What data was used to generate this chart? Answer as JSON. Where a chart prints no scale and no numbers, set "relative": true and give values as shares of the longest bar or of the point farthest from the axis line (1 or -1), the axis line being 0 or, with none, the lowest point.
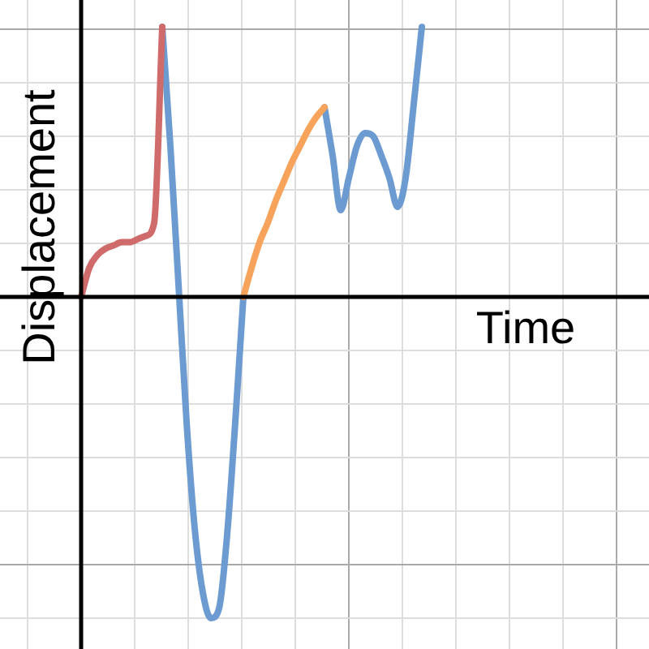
{
  "chart_data": {
    "type": "line",
    "xlabel": "Time",
    "ylabel": "Displacement",
    "relative": true,
    "grid": true,
    "legend": false,
    "marker": "none",
    "line_style": "solid",
    "categories": [
      null,
      null,
      null,
      null,
      null,
      null,
      null,
      null,
      null,
      null,
      null,
      null,
      null,
      null,
      null,
      null,
      null,
      null,
      null,
      null,
      null,
      null,
      null,
      null,
      null,
      null,
      null,
      null,
      null,
      null,
      null,
      null,
      null,
      null,
      null,
      null,
      null,
      null,
      null,
      null,
      null,
      null,
      null,
      null,
      null,
      null,
      null,
      null,
      null,
      null,
      null,
      null,
      null,
      null,
      null,
      null,
      null,
      null,
      null,
      null,
      null,
      null,
      null,
      null,
      null,
      null,
      null,
      null,
      null,
      null,
      null,
      null,
      null,
      null,
      null,
      null,
      null,
      null,
      null,
      null,
      null
    ],
    "series": [
      {
        "color": "#d06b6b",
        "values": [
          null,
          null,
          null,
          null,
          null,
          null,
          null,
          null,
          null,
          null,
          0,
          0.09,
          0.13,
          0.15,
          0.16,
          0.17,
          0.17,
          0.18,
          0.19,
          0.23,
          0.84,
          null,
          null,
          null,
          null,
          null,
          null,
          null,
          null,
          null,
          null,
          null,
          null,
          null,
          null,
          null,
          null,
          null,
          null,
          null,
          null,
          null,
          null,
          null,
          null,
          null,
          null,
          null,
          null,
          null,
          null,
          null,
          null,
          null,
          null,
          null,
          null,
          null,
          null,
          null,
          null,
          null,
          null,
          null,
          null,
          null,
          null,
          null,
          null,
          null,
          null,
          null,
          null,
          null,
          null,
          null,
          null,
          null,
          null,
          null,
          null
        ]
      },
      {
        "color": "#f7a35c",
        "values": [
          null,
          null,
          null,
          null,
          null,
          null,
          null,
          null,
          null,
          null,
          null,
          null,
          null,
          null,
          null,
          null,
          null,
          null,
          null,
          null,
          null,
          null,
          null,
          null,
          null,
          null,
          null,
          null,
          null,
          null,
          0,
          0.09,
          0.17,
          0.23,
          0.3,
          0.36,
          0.42,
          0.47,
          0.52,
          0.56,
          0.59,
          null,
          null,
          null,
          null,
          null,
          null,
          null,
          null,
          null,
          null,
          null,
          null,
          null,
          null,
          null,
          null,
          null,
          null,
          null,
          null,
          null,
          null,
          null,
          null,
          null,
          null,
          null,
          null,
          null,
          null,
          null,
          null,
          null,
          null,
          null,
          null,
          null,
          null,
          null,
          null
        ]
      },
      {
        "color": "#6b9bd1",
        "values": [
          null,
          null,
          null,
          null,
          null,
          null,
          null,
          null,
          null,
          null,
          null,
          null,
          null,
          null,
          null,
          null,
          null,
          null,
          null,
          null,
          0.84,
          0.47,
          0.04,
          -0.39,
          -0.72,
          -0.92,
          -1,
          -0.97,
          -0.74,
          -0.39,
          0,
          null,
          null,
          null,
          null,
          null,
          null,
          null,
          null,
          null,
          0.59,
          0.44,
          0.27,
          0.37,
          0.47,
          0.51,
          0.5,
          0.44,
          0.37,
          0.28,
          0.37,
          0.6,
          0.84,
          null,
          null,
          null,
          null,
          null,
          null,
          null,
          null,
          null,
          null,
          null,
          null,
          null,
          null,
          null,
          null,
          null,
          null,
          null,
          null,
          null,
          null,
          null,
          null,
          null,
          null,
          null,
          null
        ]
      }
    ]
  }
}
